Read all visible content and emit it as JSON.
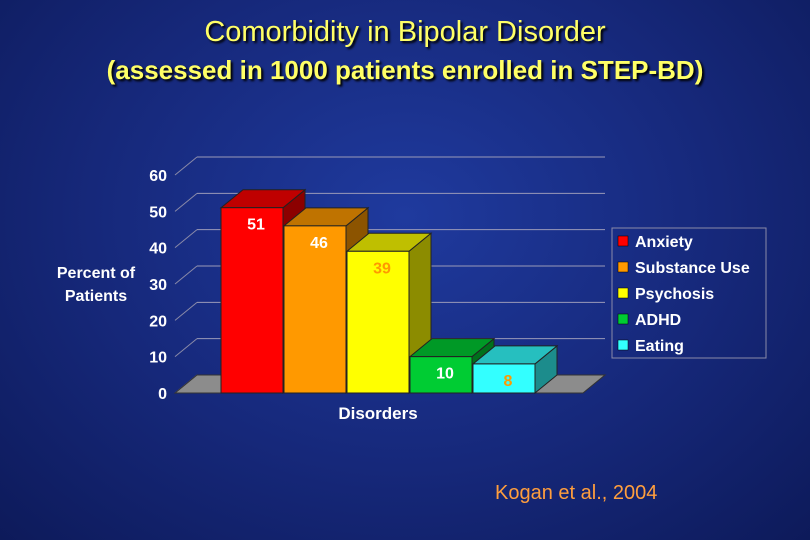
{
  "slide": {
    "title": "Comorbidity in Bipolar Disorder",
    "subtitle": "(assessed in 1000 patients enrolled in STEP-BD)",
    "citation": "Kogan et al., 2004"
  },
  "chart_data": {
    "type": "bar",
    "style": "3d",
    "xlabel": "Disorders",
    "ylabel": [
      "Percent of",
      "Patients"
    ],
    "ylim": [
      0,
      60
    ],
    "yticks": [
      0,
      10,
      20,
      30,
      40,
      50,
      60
    ],
    "grid": true,
    "legend_position": "right",
    "categories": [
      "Anxiety",
      "Substance Use",
      "Psychosis",
      "ADHD",
      "Eating"
    ],
    "values": [
      51,
      46,
      39,
      10,
      8
    ],
    "data_labels": [
      "51",
      "46",
      "39",
      "10",
      "8"
    ],
    "colors": [
      "#ff0000",
      "#ff9900",
      "#ffff00",
      "#00cc33",
      "#33ffff"
    ],
    "label_colors": [
      "#ffffff",
      "#ffffff",
      "#ff9900",
      "#ffffff",
      "#ff9900"
    ],
    "legend": [
      "Anxiety",
      "Substance Use",
      "Psychosis",
      "ADHD",
      "Eating"
    ]
  }
}
